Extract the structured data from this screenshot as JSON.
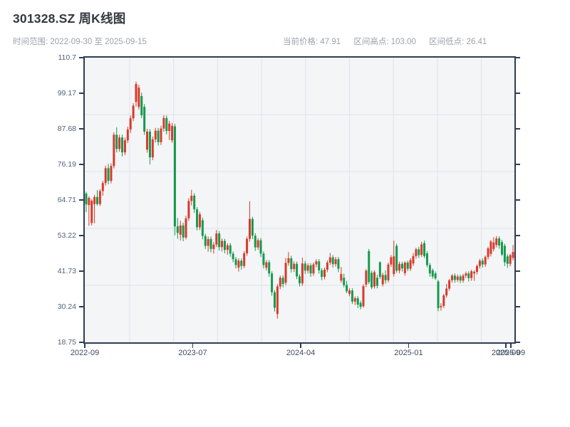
{
  "header": {
    "title": "301328.SZ 周K线图",
    "subtitle": "时间范围: 2022-09-30 至 2025-09-15",
    "stats": [
      "当前价格: 47.91",
      "区间高点: 103.00",
      "区间低点: 26.41"
    ]
  },
  "colors": {
    "up": "#d83a2b",
    "down": "#149a4c",
    "spine": "#2e3d54",
    "grid": "#e2e6ec",
    "plot_bg": "#f3f5f7",
    "title_text": "#33383f",
    "muted_text": "#9ba3ac",
    "tick_text": "#51617a"
  },
  "chart_data": {
    "type": "candlestick",
    "symbol": "301328.SZ",
    "interval": "weekly",
    "date_range": [
      "2022-09-30",
      "2025-09-15"
    ],
    "current_price": 47.91,
    "range_high": 103.0,
    "range_low": 26.41,
    "ylim": [
      18.75,
      110.7
    ],
    "y_ticks": [
      "110.7",
      "99.17",
      "87.68",
      "76.19",
      "64.71",
      "53.22",
      "41.73",
      "30.24",
      "18.75"
    ],
    "x_ticks": [
      {
        "label": "2022-09",
        "pos": 0.0
      },
      {
        "label": "2023-07",
        "pos": 0.2512
      },
      {
        "label": "2024-04",
        "pos": 0.5025
      },
      {
        "label": "2025-01",
        "pos": 0.7537
      },
      {
        "label": "2025-09",
        "pos": 0.9801
      },
      {
        "label": "2025-09",
        "pos": 0.9917
      }
    ],
    "grid": {
      "h_fracs": [
        0.2,
        0.4,
        0.6,
        0.8
      ],
      "v_fracs": [
        0.1045,
        0.2068,
        0.3092,
        0.4115,
        0.5139,
        0.6162,
        0.7186,
        0.8209,
        0.9233
      ]
    },
    "ohlc_format": [
      "open",
      "high",
      "low",
      "close"
    ],
    "ohlc": [
      [
        66.8,
        67.4,
        60.8,
        63.3
      ],
      [
        63.1,
        65.9,
        56.4,
        65.4
      ],
      [
        57.3,
        65.0,
        56.5,
        64.5
      ],
      [
        63.4,
        66.4,
        57.2,
        65.7
      ],
      [
        65.7,
        67.9,
        62.9,
        63.4
      ],
      [
        63.4,
        68.2,
        62.8,
        67.6
      ],
      [
        67.6,
        70.9,
        66.1,
        70.2
      ],
      [
        70.2,
        75.8,
        69.4,
        75.0
      ],
      [
        75.0,
        76.4,
        69.8,
        70.9
      ],
      [
        70.9,
        76.6,
        70.1,
        75.7
      ],
      [
        75.7,
        86.6,
        74.9,
        85.8
      ],
      [
        85.8,
        88.2,
        80.1,
        81.2
      ],
      [
        81.2,
        85.8,
        80.3,
        84.9
      ],
      [
        84.9,
        85.8,
        78.8,
        80.1
      ],
      [
        80.1,
        84.9,
        79.2,
        84.0
      ],
      [
        84.0,
        88.4,
        83.1,
        87.5
      ],
      [
        87.5,
        92.0,
        86.4,
        91.1
      ],
      [
        91.1,
        96.0,
        90.2,
        95.2
      ],
      [
        96.4,
        103.0,
        94.9,
        102.2
      ],
      [
        94.8,
        101.9,
        93.9,
        101.0
      ],
      [
        98.3,
        99.4,
        91.2,
        92.1
      ],
      [
        94.8,
        95.7,
        85.8,
        86.8
      ],
      [
        81.0,
        87.7,
        80.0,
        86.8
      ],
      [
        86.8,
        87.6,
        76.2,
        78.5
      ],
      [
        78.5,
        85.2,
        77.6,
        84.3
      ],
      [
        84.3,
        88.0,
        83.3,
        87.1
      ],
      [
        87.1,
        88.0,
        82.3,
        83.4
      ],
      [
        83.4,
        88.7,
        82.5,
        87.8
      ],
      [
        87.8,
        92.1,
        86.8,
        91.2
      ],
      [
        91.2,
        92.0,
        85.9,
        87.0
      ],
      [
        87.0,
        90.3,
        84.1,
        89.4
      ],
      [
        84.0,
        89.6,
        83.2,
        88.7
      ],
      [
        88.5,
        89.3,
        53.3,
        56.2
      ],
      [
        56.2,
        58.9,
        52.2,
        54.1
      ],
      [
        53.5,
        58.0,
        51.6,
        56.5
      ],
      [
        56.5,
        57.4,
        51.4,
        52.6
      ],
      [
        52.6,
        59.6,
        52.0,
        58.8
      ],
      [
        58.8,
        65.3,
        58.0,
        64.4
      ],
      [
        64.4,
        68.0,
        63.0,
        66.1
      ],
      [
        66.1,
        66.9,
        60.6,
        61.7
      ],
      [
        61.7,
        62.4,
        54.9,
        55.9
      ],
      [
        55.9,
        60.9,
        55.0,
        60.1
      ],
      [
        58.2,
        59.0,
        52.0,
        53.1
      ],
      [
        53.1,
        53.8,
        48.9,
        49.9
      ],
      [
        49.9,
        52.9,
        48.0,
        52.1
      ],
      [
        52.1,
        52.9,
        47.8,
        48.9
      ],
      [
        48.9,
        51.1,
        47.4,
        50.3
      ],
      [
        50.3,
        55.0,
        49.5,
        53.9
      ],
      [
        53.9,
        54.7,
        48.4,
        49.5
      ],
      [
        49.5,
        52.3,
        48.1,
        51.5
      ],
      [
        51.5,
        52.2,
        47.5,
        48.6
      ],
      [
        48.6,
        50.8,
        47.0,
        50.1
      ],
      [
        50.1,
        50.8,
        46.4,
        47.4
      ],
      [
        47.4,
        48.1,
        44.6,
        45.6
      ],
      [
        45.6,
        46.3,
        42.6,
        43.7
      ],
      [
        42.9,
        45.9,
        41.6,
        45.1
      ],
      [
        45.1,
        45.8,
        42.2,
        43.4
      ],
      [
        43.4,
        48.2,
        42.7,
        47.5
      ],
      [
        47.5,
        52.9,
        46.7,
        52.2
      ],
      [
        52.2,
        64.3,
        51.3,
        58.6
      ],
      [
        58.6,
        59.3,
        52.1,
        53.2
      ],
      [
        53.2,
        54.0,
        48.3,
        49.4
      ],
      [
        49.4,
        52.4,
        48.6,
        51.7
      ],
      [
        51.7,
        52.4,
        46.3,
        47.4
      ],
      [
        47.4,
        48.1,
        42.6,
        43.7
      ],
      [
        42.8,
        45.3,
        41.9,
        44.6
      ],
      [
        44.6,
        45.3,
        39.9,
        41.0
      ],
      [
        41.0,
        41.7,
        33.8,
        34.9
      ],
      [
        34.9,
        35.6,
        28.7,
        29.9
      ],
      [
        27.9,
        37.5,
        26.41,
        36.8
      ],
      [
        36.8,
        40.3,
        35.9,
        39.6
      ],
      [
        39.6,
        40.4,
        36.5,
        37.6
      ],
      [
        38.0,
        46.0,
        37.2,
        44.4
      ],
      [
        44.4,
        47.9,
        43.5,
        45.9
      ],
      [
        45.9,
        46.7,
        41.3,
        42.4
      ],
      [
        42.4,
        44.9,
        41.5,
        44.1
      ],
      [
        44.1,
        44.8,
        39.2,
        40.0
      ],
      [
        40.0,
        40.7,
        36.8,
        37.8
      ],
      [
        37.8,
        46.1,
        37.0,
        44.2
      ],
      [
        44.2,
        45.0,
        40.8,
        41.9
      ],
      [
        41.9,
        44.3,
        41.0,
        43.6
      ],
      [
        43.6,
        44.3,
        39.9,
        41.0
      ],
      [
        41.0,
        44.5,
        40.2,
        43.9
      ],
      [
        43.9,
        45.6,
        43.0,
        44.9
      ],
      [
        44.9,
        45.6,
        40.9,
        42.0
      ],
      [
        42.0,
        42.7,
        38.8,
        39.9
      ],
      [
        39.9,
        42.9,
        39.1,
        42.2
      ],
      [
        42.2,
        45.2,
        41.4,
        44.5
      ],
      [
        44.5,
        47.6,
        43.7,
        46.2
      ],
      [
        46.2,
        46.9,
        42.9,
        44.0
      ],
      [
        44.0,
        46.3,
        43.2,
        45.6
      ],
      [
        45.6,
        46.3,
        41.4,
        42.5
      ],
      [
        38.7,
        43.1,
        38.0,
        40.8
      ],
      [
        39.6,
        40.9,
        36.5,
        37.2
      ],
      [
        37.3,
        38.6,
        34.6,
        35.2
      ],
      [
        34.4,
        36.2,
        33.6,
        35.5
      ],
      [
        35.5,
        36.2,
        31.1,
        31.9
      ],
      [
        31.9,
        33.6,
        30.8,
        33.0
      ],
      [
        33.0,
        33.7,
        29.8,
        30.9
      ],
      [
        31.5,
        32.2,
        29.4,
        30.2
      ],
      [
        30.4,
        37.5,
        29.9,
        36.9
      ],
      [
        37.4,
        42.4,
        36.6,
        41.9
      ],
      [
        48.2,
        48.9,
        37.6,
        38.2
      ],
      [
        41.2,
        41.9,
        35.9,
        36.5
      ],
      [
        36.8,
        42.0,
        36.1,
        41.4
      ],
      [
        39.6,
        40.5,
        36.2,
        37.0
      ],
      [
        44.6,
        44.9,
        39.2,
        39.9
      ],
      [
        37.5,
        41.2,
        36.8,
        40.5
      ],
      [
        40.5,
        42.0,
        37.7,
        38.8
      ],
      [
        38.8,
        44.5,
        38.1,
        43.9
      ],
      [
        43.9,
        46.9,
        43.1,
        46.2
      ],
      [
        40.8,
        51.6,
        40.0,
        46.5
      ],
      [
        49.9,
        50.6,
        41.2,
        41.9
      ],
      [
        41.9,
        44.8,
        41.0,
        44.1
      ],
      [
        44.1,
        44.8,
        41.6,
        42.6
      ],
      [
        41.1,
        44.9,
        40.3,
        44.5
      ],
      [
        44.5,
        45.1,
        41.7,
        42.5
      ],
      [
        42.5,
        45.9,
        41.8,
        45.3
      ],
      [
        44.2,
        47.6,
        43.4,
        46.6
      ],
      [
        46.6,
        49.3,
        45.8,
        48.8
      ],
      [
        48.8,
        49.6,
        46.0,
        46.9
      ],
      [
        47.0,
        51.2,
        46.3,
        50.4
      ],
      [
        50.8,
        51.6,
        46.0,
        46.6
      ],
      [
        47.5,
        48.2,
        43.0,
        43.7
      ],
      [
        43.7,
        44.4,
        39.9,
        41.0
      ],
      [
        42.0,
        42.6,
        39.3,
        40.0
      ],
      [
        41.0,
        41.6,
        38.9,
        39.4
      ],
      [
        38.4,
        38.9,
        28.8,
        29.8
      ],
      [
        30.1,
        31.4,
        29.0,
        30.5
      ],
      [
        30.5,
        34.4,
        29.9,
        33.9
      ],
      [
        33.9,
        37.6,
        33.2,
        36.1
      ],
      [
        36.1,
        39.2,
        35.4,
        38.8
      ],
      [
        38.8,
        40.8,
        38.0,
        40.3
      ],
      [
        40.3,
        41.0,
        38.0,
        38.9
      ],
      [
        38.9,
        40.7,
        38.2,
        40.0
      ],
      [
        40.0,
        40.6,
        37.9,
        38.7
      ],
      [
        38.7,
        40.9,
        38.0,
        40.3
      ],
      [
        40.3,
        41.6,
        39.5,
        41.0
      ],
      [
        41.0,
        41.7,
        38.4,
        39.5
      ],
      [
        39.5,
        42.2,
        38.6,
        41.7
      ],
      [
        41.0,
        42.0,
        38.6,
        41.5
      ],
      [
        41.5,
        43.9,
        40.7,
        43.4
      ],
      [
        43.4,
        45.7,
        42.6,
        45.1
      ],
      [
        45.1,
        45.8,
        42.9,
        43.9
      ],
      [
        43.9,
        46.8,
        43.1,
        46.3
      ],
      [
        46.3,
        49.6,
        45.5,
        49.1
      ],
      [
        47.3,
        51.8,
        46.5,
        51.3
      ],
      [
        48.9,
        52.7,
        48.1,
        51.0
      ],
      [
        50.2,
        53.1,
        49.4,
        52.3
      ],
      [
        52.3,
        53.0,
        49.0,
        50.0
      ],
      [
        51.1,
        51.8,
        46.6,
        47.1
      ],
      [
        49.9,
        50.6,
        43.4,
        44.6
      ],
      [
        46.5,
        47.2,
        42.8,
        44.1
      ],
      [
        44.1,
        47.4,
        43.3,
        46.9
      ],
      [
        46.0,
        50.2,
        45.2,
        47.91
      ]
    ]
  }
}
